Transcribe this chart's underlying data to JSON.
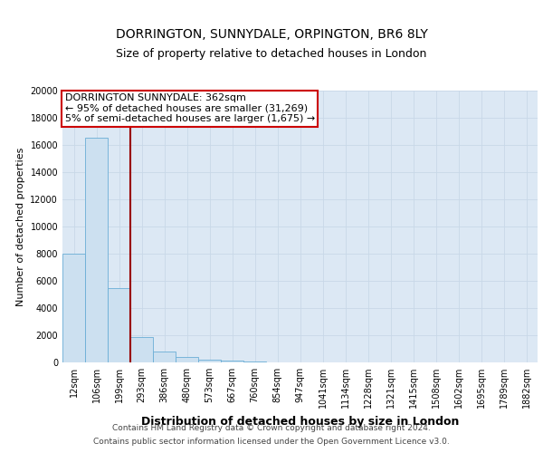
{
  "title1": "DORRINGTON, SUNNYDALE, ORPINGTON, BR6 8LY",
  "title2": "Size of property relative to detached houses in London",
  "xlabel": "Distribution of detached houses by size in London",
  "ylabel": "Number of detached properties",
  "categories": [
    "12sqm",
    "106sqm",
    "199sqm",
    "293sqm",
    "386sqm",
    "480sqm",
    "573sqm",
    "667sqm",
    "760sqm",
    "854sqm",
    "947sqm",
    "1041sqm",
    "1134sqm",
    "1228sqm",
    "1321sqm",
    "1415sqm",
    "1508sqm",
    "1602sqm",
    "1695sqm",
    "1789sqm",
    "1882sqm"
  ],
  "values": [
    8000,
    16500,
    5500,
    1900,
    800,
    400,
    200,
    130,
    100,
    0,
    0,
    0,
    0,
    0,
    0,
    0,
    0,
    0,
    0,
    0,
    0
  ],
  "bar_color": "#cce0f0",
  "bar_edge_color": "#6aaed6",
  "grid_color": "#c8d8e8",
  "background_color": "#dce8f4",
  "vline_x": 2.5,
  "vline_color": "#990000",
  "annotation_line1": "DORRINGTON SUNNYDALE: 362sqm",
  "annotation_line2": "← 95% of detached houses are smaller (31,269)",
  "annotation_line3": "5% of semi-detached houses are larger (1,675) →",
  "annotation_box_color": "#ffffff",
  "annotation_box_edge": "#cc0000",
  "ylim": [
    0,
    20000
  ],
  "yticks": [
    0,
    2000,
    4000,
    6000,
    8000,
    10000,
    12000,
    14000,
    16000,
    18000,
    20000
  ],
  "footer_line1": "Contains HM Land Registry data © Crown copyright and database right 2024.",
  "footer_line2": "Contains public sector information licensed under the Open Government Licence v3.0.",
  "title1_fontsize": 10,
  "title2_fontsize": 9,
  "xlabel_fontsize": 9,
  "ylabel_fontsize": 8,
  "tick_fontsize": 7,
  "annot_fontsize": 8,
  "footer_fontsize": 6.5
}
